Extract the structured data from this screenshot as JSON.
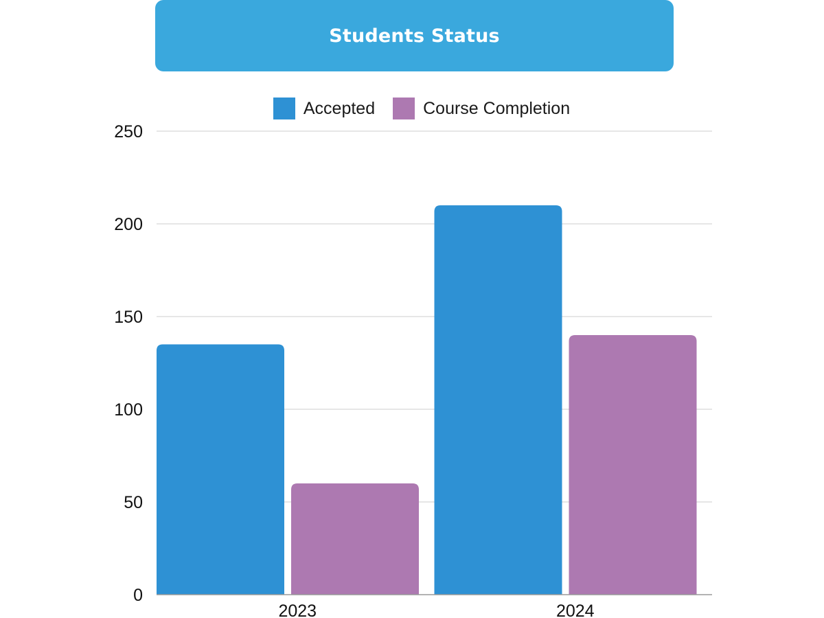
{
  "colors": {
    "title_bg": "#3aa8dd",
    "accepted": "#2e91d4",
    "course_completion": "#ad79b1",
    "grid": "#d6d6d6",
    "axis": "#9a9a9a"
  },
  "chart_data": {
    "type": "bar",
    "title": "Students Status",
    "xlabel": "",
    "ylabel": "",
    "categories": [
      "2023",
      "2024"
    ],
    "series": [
      {
        "name": "Accepted",
        "values": [
          135,
          210
        ]
      },
      {
        "name": "Course Completion",
        "values": [
          60,
          140
        ]
      }
    ],
    "ylim": [
      0,
      250
    ],
    "yticks": [
      "0",
      "50",
      "100",
      "150",
      "200",
      "250"
    ],
    "grid": true,
    "legend_position": "top-center"
  }
}
